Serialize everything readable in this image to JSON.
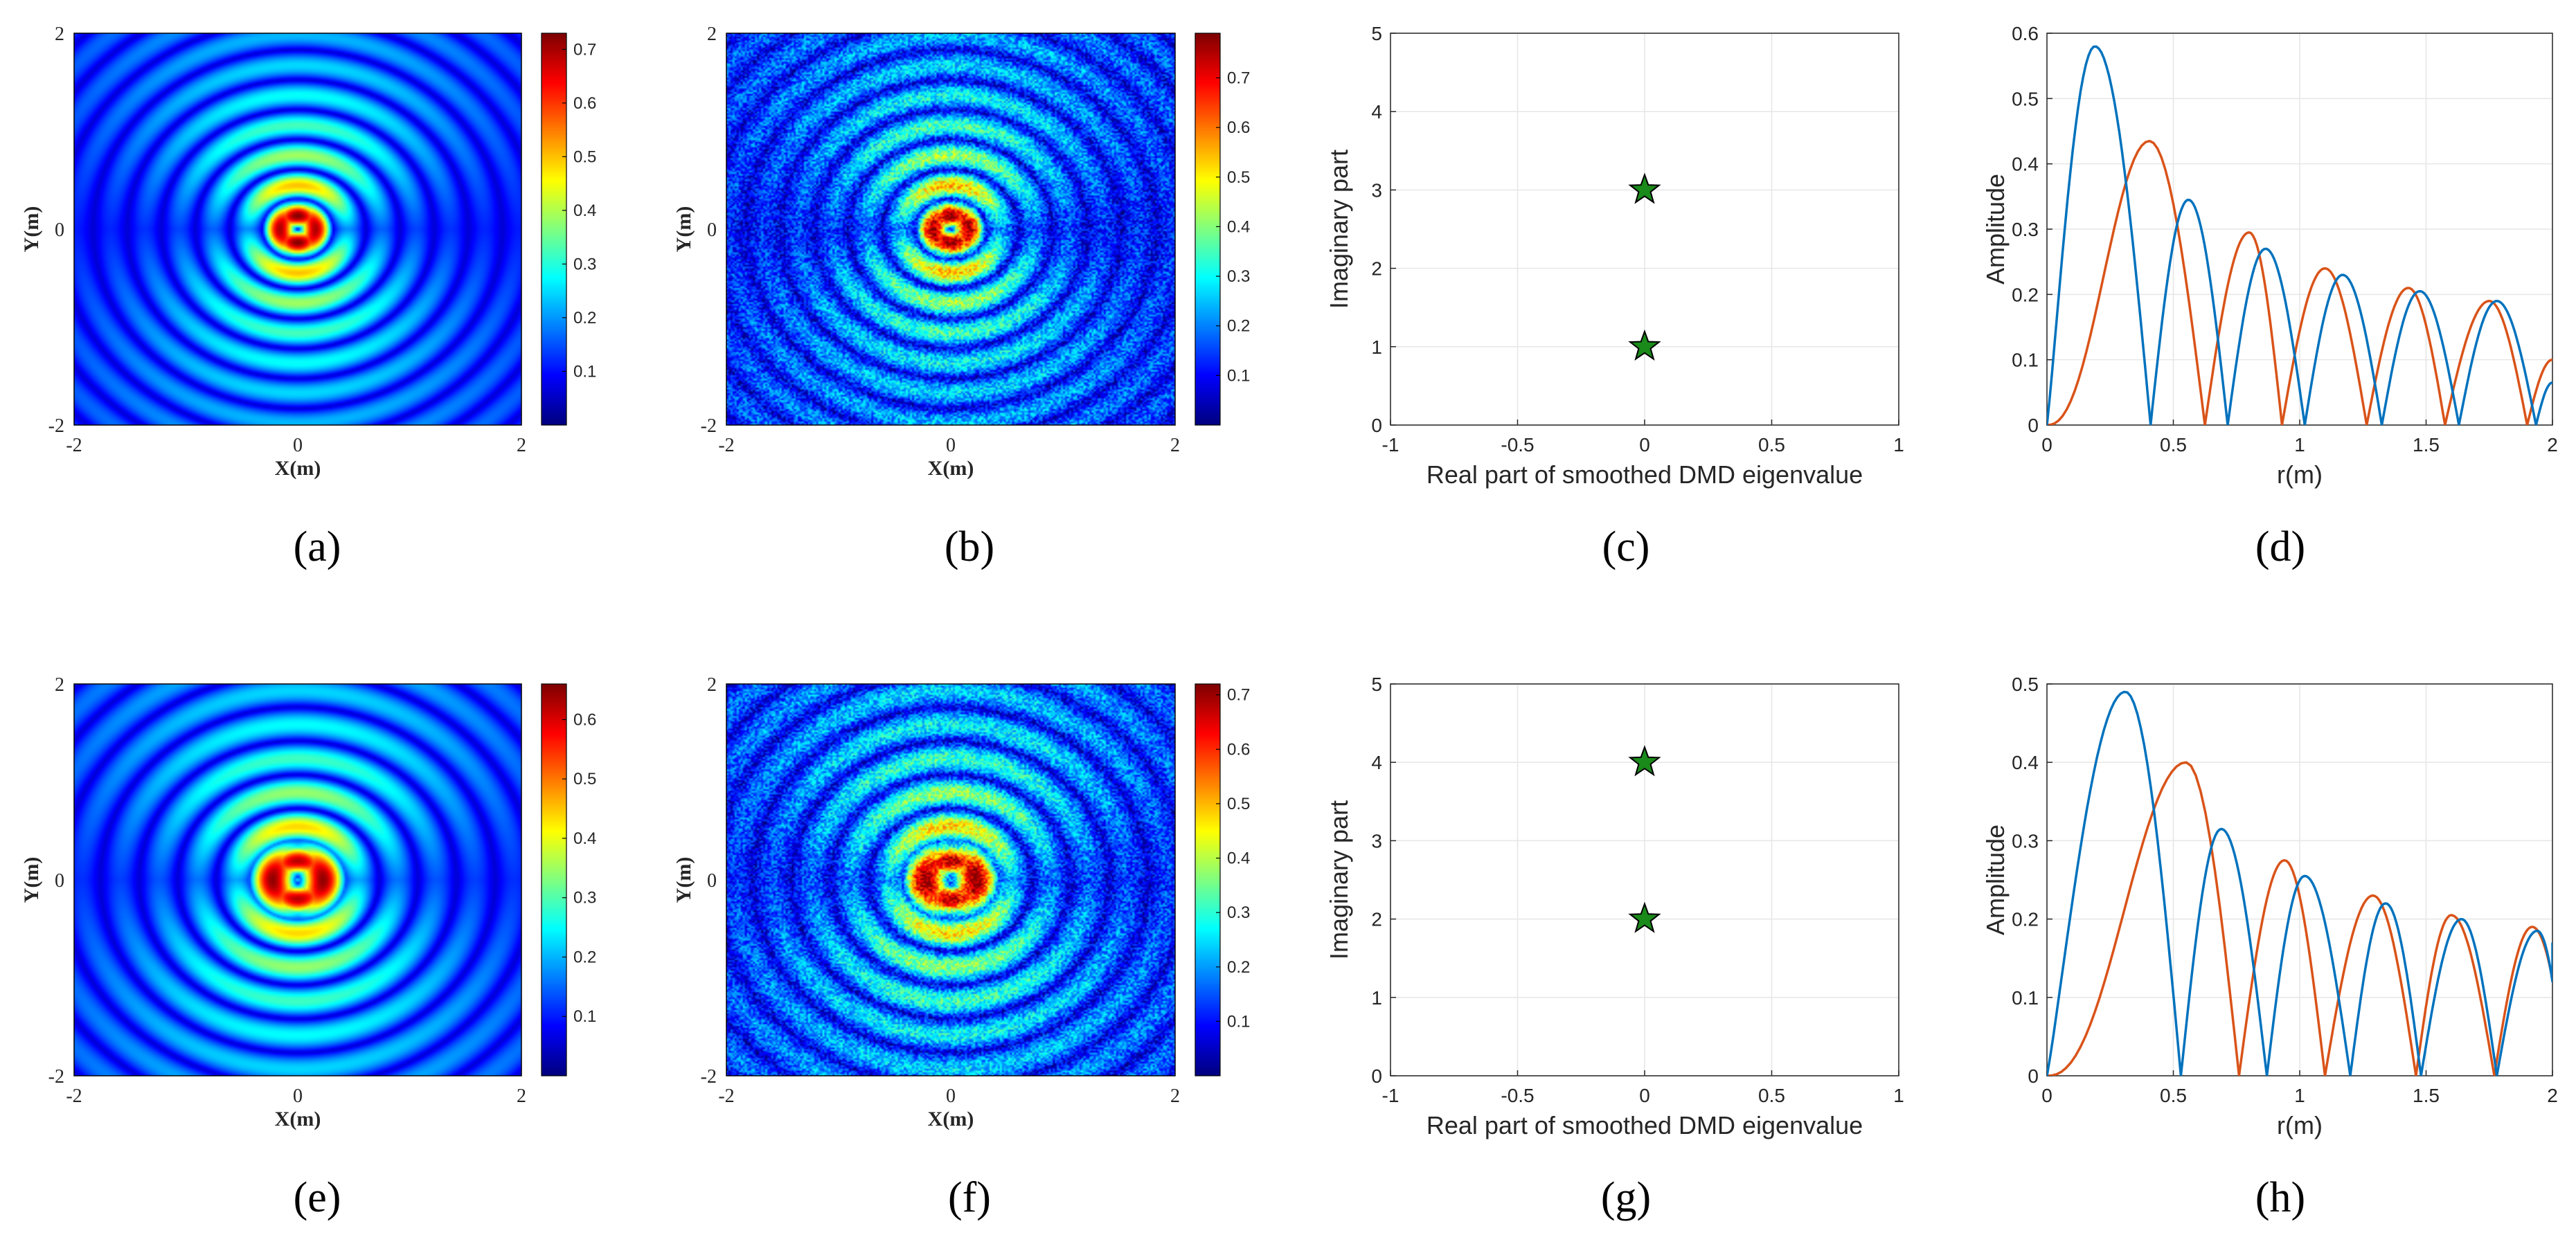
{
  "colors": {
    "blue_series": "#0072BD",
    "orange_series": "#D95319",
    "star_fill": "#1a8a1a",
    "grid": "#e6e6e6",
    "axis": "#262626"
  },
  "chart_data": [
    {
      "type": "heatmap",
      "caption": "(a)",
      "variant": "clean",
      "field": 1,
      "xlabel": "X(m)",
      "ylabel": "Y(m)",
      "xlim": [
        -2,
        2
      ],
      "ylim": [
        -2,
        2
      ],
      "xticks": [
        "-2",
        "0",
        "2"
      ],
      "yticks": [
        "-2",
        "0",
        "2"
      ],
      "colorbar": {
        "min": 0.0,
        "max": 0.73,
        "ticks": [
          "0.1",
          "0.2",
          "0.3",
          "0.4",
          "0.5",
          "0.6",
          "0.7"
        ]
      }
    },
    {
      "type": "heatmap",
      "caption": "(b)",
      "variant": "noisy",
      "field": 1,
      "xlabel": "X(m)",
      "ylabel": "Y(m)",
      "xlim": [
        -2,
        2
      ],
      "ylim": [
        -2,
        2
      ],
      "xticks": [
        "-2",
        "0",
        "2"
      ],
      "yticks": [
        "-2",
        "0",
        "2"
      ],
      "colorbar": {
        "min": 0.0,
        "max": 0.79,
        "ticks": [
          "0.1",
          "0.2",
          "0.3",
          "0.4",
          "0.5",
          "0.6",
          "0.7"
        ]
      }
    },
    {
      "type": "scatter",
      "caption": "(c)",
      "xlabel": "Real part of  smoothed DMD eigenvalue",
      "ylabel": "Imaginary part",
      "xlim": [
        -1,
        1
      ],
      "ylim": [
        0,
        5
      ],
      "xticks": [
        "-1",
        "-0.5",
        "0",
        "0.5",
        "1"
      ],
      "yticks": [
        "0",
        "1",
        "2",
        "3",
        "4",
        "5"
      ],
      "points": [
        {
          "x": 0,
          "y": 3
        },
        {
          "x": 0,
          "y": 1
        }
      ]
    },
    {
      "type": "line",
      "caption": "(d)",
      "xlabel": "r(m)",
      "ylabel": "Amplitude",
      "xlim": [
        0,
        2
      ],
      "ylim": [
        0,
        0.6
      ],
      "xticks": [
        "0",
        "0.5",
        "1",
        "1.5",
        "2"
      ],
      "yticks": [
        "0",
        "0.1",
        "0.2",
        "0.3",
        "0.4",
        "0.5",
        "0.6"
      ],
      "series": [
        {
          "name": "blue",
          "zeros": [
            0,
            0.41,
            0.715,
            1.02,
            1.325,
            1.63,
            1.935
          ],
          "peaks": [
            [
              0.19,
              0.58
            ],
            [
              0.56,
              0.345
            ],
            [
              0.865,
              0.27
            ],
            [
              1.17,
              0.23
            ],
            [
              1.475,
              0.205
            ],
            [
              1.78,
              0.19
            ],
            [
              2.0,
              0.065
            ]
          ]
        },
        {
          "name": "orange",
          "zeros": [
            0,
            0.625,
            0.93,
            1.265,
            1.575,
            1.9
          ],
          "peaks": [
            [
              0.405,
              0.435
            ],
            [
              0.8,
              0.295
            ],
            [
              1.1,
              0.24
            ],
            [
              1.43,
              0.21
            ],
            [
              1.75,
              0.19
            ],
            [
              2.0,
              0.1
            ]
          ]
        }
      ]
    },
    {
      "type": "heatmap",
      "caption": "(e)",
      "variant": "clean",
      "field": 2,
      "xlabel": "X(m)",
      "ylabel": "Y(m)",
      "xlim": [
        -2,
        2
      ],
      "ylim": [
        -2,
        2
      ],
      "xticks": [
        "-2",
        "0",
        "2"
      ],
      "yticks": [
        "-2",
        "0",
        "2"
      ],
      "colorbar": {
        "min": 0.0,
        "max": 0.66,
        "ticks": [
          "0.1",
          "0.2",
          "0.3",
          "0.4",
          "0.5",
          "0.6"
        ]
      }
    },
    {
      "type": "heatmap",
      "caption": "(f)",
      "variant": "noisy",
      "field": 2,
      "xlabel": "X(m)",
      "ylabel": "Y(m)",
      "xlim": [
        -2,
        2
      ],
      "ylim": [
        -2,
        2
      ],
      "xticks": [
        "-2",
        "0",
        "2"
      ],
      "yticks": [
        "-2",
        "0",
        "2"
      ],
      "colorbar": {
        "min": 0.0,
        "max": 0.72,
        "ticks": [
          "0.1",
          "0.2",
          "0.3",
          "0.4",
          "0.5",
          "0.6",
          "0.7"
        ]
      }
    },
    {
      "type": "scatter",
      "caption": "(g)",
      "xlabel": "Real part of  smoothed DMD eigenvalue",
      "ylabel": "Imaginary part",
      "xlim": [
        -1,
        1
      ],
      "ylim": [
        0,
        5
      ],
      "xticks": [
        "-1",
        "-0.5",
        "0",
        "0.5",
        "1"
      ],
      "yticks": [
        "0",
        "1",
        "2",
        "3",
        "4",
        "5"
      ],
      "points": [
        {
          "x": 0,
          "y": 4
        },
        {
          "x": 0,
          "y": 2
        }
      ]
    },
    {
      "type": "line",
      "caption": "(h)",
      "xlabel": "r(m)",
      "ylabel": "Amplitude",
      "xlim": [
        0,
        2
      ],
      "ylim": [
        0,
        0.5
      ],
      "xticks": [
        "0",
        "0.5",
        "1",
        "1.5",
        "2"
      ],
      "yticks": [
        "0",
        "0.1",
        "0.2",
        "0.3",
        "0.4",
        "0.5"
      ],
      "series": [
        {
          "name": "blue",
          "zeros": [
            0,
            0.53,
            0.87,
            1.2,
            1.48,
            1.78
          ],
          "peaks": [
            [
              0.31,
              0.49
            ],
            [
              0.69,
              0.315
            ],
            [
              1.02,
              0.255
            ],
            [
              1.34,
              0.22
            ],
            [
              1.64,
              0.2
            ],
            [
              1.94,
              0.185
            ],
            [
              2.0,
              0.17
            ]
          ]
        },
        {
          "name": "orange",
          "zeros": [
            0,
            0.76,
            1.1,
            1.46,
            1.77
          ],
          "peaks": [
            [
              0.55,
              0.4
            ],
            [
              0.94,
              0.275
            ],
            [
              1.29,
              0.23
            ],
            [
              1.6,
              0.205
            ],
            [
              1.92,
              0.19
            ],
            [
              2.0,
              0.135
            ]
          ]
        }
      ]
    }
  ]
}
